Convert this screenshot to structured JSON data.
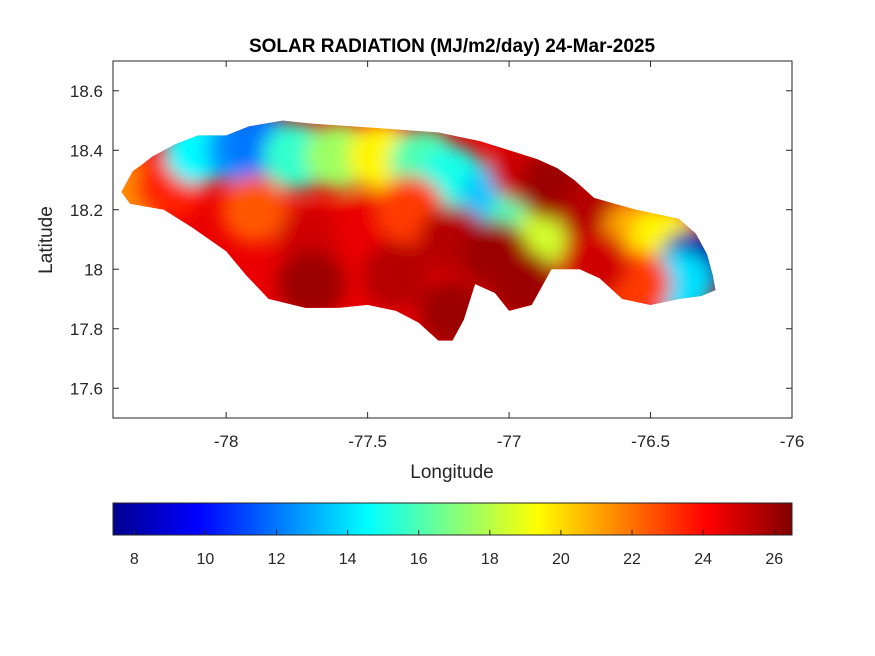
{
  "chart_data": {
    "type": "heatmap",
    "title": "SOLAR RADIATION (MJ/m2/day) 24-Mar-2025",
    "xlabel": "Longitude",
    "ylabel": "Latitude",
    "xlim": [
      -78.4,
      -76
    ],
    "ylim": [
      17.5,
      18.7
    ],
    "xticks": [
      -78,
      -77.5,
      -77,
      -76.5,
      -76
    ],
    "xtick_labels": [
      "-78",
      "-77.5",
      "-77",
      "-76.5",
      "-76"
    ],
    "yticks": [
      17.6,
      17.8,
      18,
      18.2,
      18.4,
      18.6
    ],
    "ytick_labels": [
      "17.6",
      "17.8",
      "18",
      "18.2",
      "18.4",
      "18.6"
    ],
    "colormap": "jet",
    "colorbar": {
      "location": "bottom",
      "range": [
        7.4,
        26.5
      ],
      "ticks": [
        8,
        10,
        12,
        14,
        16,
        18,
        20,
        22,
        24,
        26
      ],
      "tick_labels": [
        "8",
        "10",
        "12",
        "14",
        "16",
        "18",
        "20",
        "22",
        "24",
        "26"
      ]
    },
    "grid": false,
    "region_outline": [
      [
        -78.37,
        18.26
      ],
      [
        -78.33,
        18.33
      ],
      [
        -78.3,
        18.35
      ],
      [
        -78.26,
        18.38
      ],
      [
        -78.18,
        18.42
      ],
      [
        -78.1,
        18.45
      ],
      [
        -78.0,
        18.45
      ],
      [
        -77.92,
        18.48
      ],
      [
        -77.8,
        18.5
      ],
      [
        -77.7,
        18.49
      ],
      [
        -77.55,
        18.48
      ],
      [
        -77.4,
        18.47
      ],
      [
        -77.25,
        18.46
      ],
      [
        -77.1,
        18.43
      ],
      [
        -77.0,
        18.4
      ],
      [
        -76.9,
        18.37
      ],
      [
        -76.83,
        18.34
      ],
      [
        -76.77,
        18.3
      ],
      [
        -76.7,
        18.24
      ],
      [
        -76.55,
        18.2
      ],
      [
        -76.4,
        18.17
      ],
      [
        -76.34,
        18.12
      ],
      [
        -76.3,
        18.05
      ],
      [
        -76.28,
        17.98
      ],
      [
        -76.27,
        17.93
      ],
      [
        -76.32,
        17.91
      ],
      [
        -76.4,
        17.9
      ],
      [
        -76.5,
        17.88
      ],
      [
        -76.6,
        17.9
      ],
      [
        -76.68,
        17.97
      ],
      [
        -76.75,
        18.0
      ],
      [
        -76.85,
        18.0
      ],
      [
        -76.92,
        17.88
      ],
      [
        -77.0,
        17.86
      ],
      [
        -77.05,
        17.92
      ],
      [
        -77.12,
        17.95
      ],
      [
        -77.16,
        17.83
      ],
      [
        -77.2,
        17.76
      ],
      [
        -77.25,
        17.76
      ],
      [
        -77.32,
        17.82
      ],
      [
        -77.4,
        17.86
      ],
      [
        -77.5,
        17.88
      ],
      [
        -77.6,
        17.87
      ],
      [
        -77.72,
        17.87
      ],
      [
        -77.85,
        17.9
      ],
      [
        -77.93,
        17.98
      ],
      [
        -78.0,
        18.06
      ],
      [
        -78.06,
        18.1
      ],
      [
        -78.12,
        18.14
      ],
      [
        -78.22,
        18.2
      ],
      [
        -78.34,
        18.22
      ],
      [
        -78.37,
        18.26
      ]
    ],
    "field_samples": [
      {
        "lon": -78.32,
        "lat": 18.26,
        "value": 21.5
      },
      {
        "lon": -78.2,
        "lat": 18.28,
        "value": 23.5
      },
      {
        "lon": -78.1,
        "lat": 18.4,
        "value": 14.5
      },
      {
        "lon": -77.95,
        "lat": 18.4,
        "value": 12.5
      },
      {
        "lon": -77.88,
        "lat": 18.42,
        "value": 12.0
      },
      {
        "lon": -77.75,
        "lat": 18.38,
        "value": 15.5
      },
      {
        "lon": -77.6,
        "lat": 18.38,
        "value": 17.5
      },
      {
        "lon": -77.45,
        "lat": 18.38,
        "value": 19.5
      },
      {
        "lon": -77.3,
        "lat": 18.36,
        "value": 16.0
      },
      {
        "lon": -77.2,
        "lat": 18.3,
        "value": 15.0
      },
      {
        "lon": -77.05,
        "lat": 18.24,
        "value": 13.5
      },
      {
        "lon": -76.95,
        "lat": 18.16,
        "value": 16.0
      },
      {
        "lon": -76.85,
        "lat": 18.12,
        "value": 18.5
      },
      {
        "lon": -76.95,
        "lat": 18.34,
        "value": 25.0
      },
      {
        "lon": -76.85,
        "lat": 18.28,
        "value": 26.0
      },
      {
        "lon": -76.7,
        "lat": 18.18,
        "value": 25.5
      },
      {
        "lon": -76.55,
        "lat": 18.12,
        "value": 21.0
      },
      {
        "lon": -76.45,
        "lat": 18.1,
        "value": 19.5
      },
      {
        "lon": -76.35,
        "lat": 18.02,
        "value": 8.0
      },
      {
        "lon": -76.4,
        "lat": 17.95,
        "value": 14.0
      },
      {
        "lon": -76.55,
        "lat": 17.95,
        "value": 23.0
      },
      {
        "lon": -76.7,
        "lat": 18.02,
        "value": 25.0
      },
      {
        "lon": -77.9,
        "lat": 18.2,
        "value": 22.5
      },
      {
        "lon": -77.7,
        "lat": 18.1,
        "value": 25.0
      },
      {
        "lon": -77.5,
        "lat": 18.15,
        "value": 24.5
      },
      {
        "lon": -77.35,
        "lat": 18.2,
        "value": 23.0
      },
      {
        "lon": -77.2,
        "lat": 18.1,
        "value": 25.5
      },
      {
        "lon": -77.05,
        "lat": 18.05,
        "value": 26.0
      },
      {
        "lon": -77.4,
        "lat": 17.98,
        "value": 25.5
      },
      {
        "lon": -77.7,
        "lat": 17.95,
        "value": 26.0
      },
      {
        "lon": -77.2,
        "lat": 17.85,
        "value": 26.0
      },
      {
        "lon": -76.95,
        "lat": 17.95,
        "value": 26.0
      }
    ]
  }
}
